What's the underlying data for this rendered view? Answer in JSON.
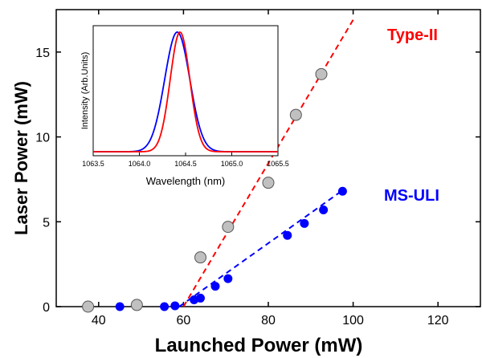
{
  "chart_data": [
    {
      "type": "scatter",
      "xlabel": "Launched Power (mW)",
      "ylabel": "Laser Power (mW)",
      "xlim": [
        30,
        130
      ],
      "ylim": [
        0,
        17.5
      ],
      "xticks": [
        "40",
        "60",
        "80",
        "100",
        "120"
      ],
      "yticks": [
        "0",
        "5",
        "10",
        "15"
      ],
      "xtick_values": [
        40,
        60,
        80,
        100,
        120
      ],
      "ytick_values": [
        0,
        5,
        10,
        15
      ],
      "series": [
        {
          "name": "Type-II",
          "marker_color": "#c0c0c0",
          "line_color": "#ff0000",
          "points": [
            {
              "x": 37.5,
              "y": 0.0
            },
            {
              "x": 49,
              "y": 0.1
            },
            {
              "x": 64,
              "y": 2.9
            },
            {
              "x": 70.5,
              "y": 4.7
            },
            {
              "x": 80,
              "y": 7.3
            },
            {
              "x": 86.5,
              "y": 11.3
            },
            {
              "x": 92.5,
              "y": 13.7
            }
          ],
          "fit": [
            [
              60,
              0
            ],
            [
              100,
              16.9
            ]
          ]
        },
        {
          "name": "MS-ULI",
          "marker_color": "#0000ff",
          "line_color": "#0000ff",
          "points": [
            {
              "x": 45,
              "y": 0.0
            },
            {
              "x": 55.5,
              "y": 0.0
            },
            {
              "x": 58,
              "y": 0.05
            },
            {
              "x": 62.5,
              "y": 0.4
            },
            {
              "x": 64,
              "y": 0.5
            },
            {
              "x": 67.5,
              "y": 1.2
            },
            {
              "x": 70.5,
              "y": 1.65
            },
            {
              "x": 84.5,
              "y": 4.2
            },
            {
              "x": 88.5,
              "y": 4.9
            },
            {
              "x": 93,
              "y": 5.7
            },
            {
              "x": 97.5,
              "y": 6.8
            }
          ],
          "fit": [
            [
              59,
              0
            ],
            [
              97.5,
              6.85
            ]
          ]
        }
      ]
    },
    {
      "type": "line",
      "xlabel": "Wavelength (nm)",
      "ylabel": "Intensity (Arb.Units)",
      "xlim": [
        1063.5,
        1065.5
      ],
      "xticks": [
        "1063.5",
        "1064.0",
        "1064.5",
        "1065.0",
        "1065.5"
      ],
      "xtick_values": [
        1063.5,
        1064.0,
        1064.5,
        1065.0,
        1065.5
      ],
      "series": [
        {
          "color": "#0000ff",
          "center": 1064.41,
          "fwhm": 0.32
        },
        {
          "color": "#ff0000",
          "center": 1064.44,
          "fwhm": 0.25
        }
      ]
    }
  ]
}
